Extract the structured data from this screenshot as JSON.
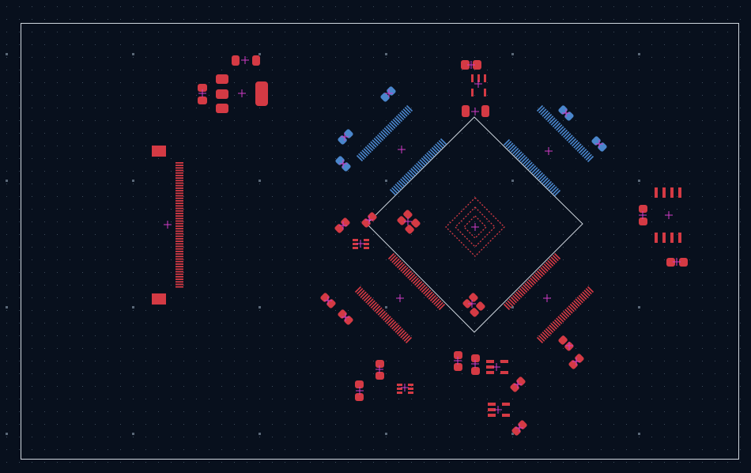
{
  "editor": {
    "view": "pcb-layout",
    "layers": {
      "top_copper_color": "#d43a44",
      "bottom_copper_color": "#4a86cc",
      "outline_color": "#cfd6de",
      "origin_marker_color": "#d23cc8",
      "background_color": "#08101d",
      "grid_color": "#3c4a5a"
    }
  }
}
